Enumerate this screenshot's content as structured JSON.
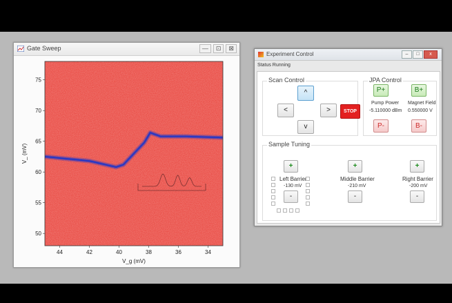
{
  "plot_window": {
    "title": "Gate Sweep",
    "buttons": {
      "minimize": "—",
      "restore": "⊡",
      "close": "⊠"
    },
    "icon": "chart-window-icon"
  },
  "chart_data": {
    "type": "heatmap",
    "xlabel": "V_g (mV)",
    "ylabel": "V_ (mV)",
    "x_ticks": [
      "44",
      "42",
      "40",
      "38",
      "36",
      "34"
    ],
    "y_ticks": [
      "75",
      "70",
      "65",
      "60",
      "55",
      "50"
    ],
    "xlim": [
      45,
      33
    ],
    "ylim": [
      48,
      78
    ],
    "background_color": "#e8423a",
    "line_color": "#2036c8",
    "inset_color": "#7a3030",
    "feature_line": [
      {
        "x": 45.0,
        "y": 62.5
      },
      {
        "x": 42.0,
        "y": 61.8
      },
      {
        "x": 40.2,
        "y": 60.8
      },
      {
        "x": 39.7,
        "y": 61.2
      },
      {
        "x": 38.3,
        "y": 64.8
      },
      {
        "x": 37.9,
        "y": 66.4
      },
      {
        "x": 37.2,
        "y": 65.8
      },
      {
        "x": 35.5,
        "y": 65.8
      },
      {
        "x": 33.0,
        "y": 65.6
      }
    ]
  },
  "control_window": {
    "title": "Experiment Control",
    "menu_tab": "Status Running",
    "scan_control": {
      "title": "Scan Control",
      "up": "^",
      "left": "<",
      "right": ">",
      "down": "v",
      "stop": "STOP"
    },
    "jpa_control": {
      "title": "JPA Control",
      "p_plus": "P+",
      "p_minus": "P-",
      "b_plus": "B+",
      "b_minus": "B-",
      "pump_power_label": "Pump Power",
      "pump_power_value": "-5.110000 dBm",
      "magnet_field_label": "Magnet Field",
      "magnet_field_value": "0.550000 V"
    },
    "sample_tuning": {
      "title": "Sample Tuning",
      "left_label": "Left Barrier",
      "left_value": "-130 mV",
      "middle_label": "Middle Barrier",
      "middle_value": "-210 mV",
      "right_label": "Right Barrier",
      "right_value": "-200 mV",
      "plus": "+",
      "minus": "-"
    }
  }
}
